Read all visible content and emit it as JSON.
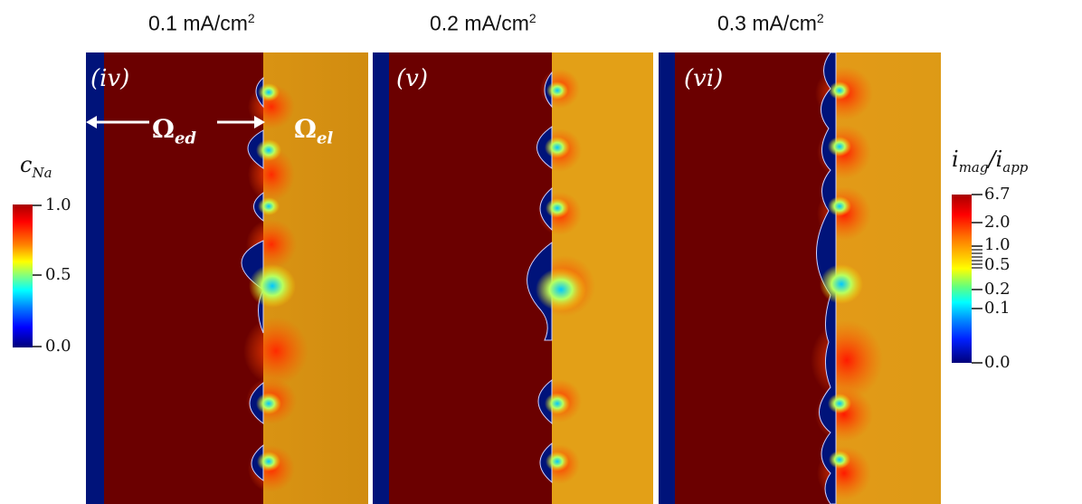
{
  "titles": [
    "0.1 mA/cm",
    "0.2 mA/cm",
    "0.3 mA/cm"
  ],
  "title_exponent": "2",
  "panel_labels": [
    "(iv)",
    "(v)",
    "(vi)"
  ],
  "region_labels": {
    "ed_base": "Ω",
    "ed_sub": "ed",
    "el_base": "Ω",
    "el_sub": "el"
  },
  "colorbar_left": {
    "title_base": "c",
    "title_sub": "Na",
    "ticks": [
      "1.0",
      "0.5",
      "0.0"
    ]
  },
  "colorbar_right": {
    "title_a": "i",
    "title_a_sub": "mag",
    "title_sep": "/",
    "title_b": "i",
    "title_b_sub": "app",
    "ticks": [
      "6.7",
      "2.0",
      "1.0",
      "0.5",
      "0.2",
      "0.1",
      "0.0"
    ]
  },
  "colors": {
    "electrode": "#6b0000",
    "electrolyte": "#d99a16",
    "current_collector": "#00137a"
  }
}
